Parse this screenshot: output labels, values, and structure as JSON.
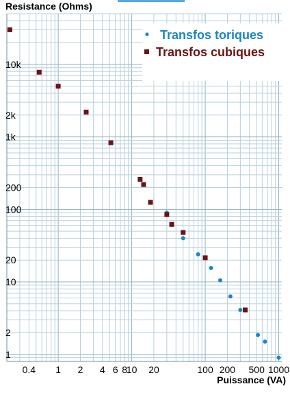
{
  "chart_data": {
    "type": "scatter",
    "title": "",
    "ylabel": "Resistance (Ohms)",
    "xlabel": "Puissance (VA)",
    "x_scale": "log",
    "y_scale": "log",
    "xlim": [
      0.2,
      1100
    ],
    "ylim": [
      0.8,
      50000
    ],
    "grid": true,
    "legend_position": "top-right",
    "x_tick_labels": [
      {
        "value": 0.4,
        "label": "0.4"
      },
      {
        "value": 1,
        "label": "1"
      },
      {
        "value": 2,
        "label": "2"
      },
      {
        "value": 4,
        "label": "4"
      },
      {
        "value": 6,
        "label": "6"
      },
      {
        "value": 8,
        "label": "8"
      },
      {
        "value": 10,
        "label": "10"
      },
      {
        "value": 20,
        "label": "20"
      },
      {
        "value": 100,
        "label": "100"
      },
      {
        "value": 200,
        "label": "200"
      },
      {
        "value": 500,
        "label": "500"
      },
      {
        "value": 1000,
        "label": "1000"
      }
    ],
    "y_tick_labels": [
      {
        "value": 1,
        "label": "1"
      },
      {
        "value": 2,
        "label": "2"
      },
      {
        "value": 10,
        "label": "10"
      },
      {
        "value": 20,
        "label": "20"
      },
      {
        "value": 100,
        "label": "100"
      },
      {
        "value": 200,
        "label": "200"
      },
      {
        "value": 1000,
        "label": "1k"
      },
      {
        "value": 2000,
        "label": "2k"
      },
      {
        "value": 10000,
        "label": "10k"
      }
    ],
    "series": [
      {
        "name": "Transfos toriques",
        "color": "#1a86c8",
        "marker": "circle",
        "points": [
          {
            "x": 30,
            "y": 90
          },
          {
            "x": 50,
            "y": 40
          },
          {
            "x": 80,
            "y": 24
          },
          {
            "x": 120,
            "y": 15.5
          },
          {
            "x": 160,
            "y": 10.5
          },
          {
            "x": 220,
            "y": 6.3
          },
          {
            "x": 300,
            "y": 4.1
          },
          {
            "x": 520,
            "y": 1.85
          },
          {
            "x": 650,
            "y": 1.5
          },
          {
            "x": 1000,
            "y": 0.9
          }
        ]
      },
      {
        "name": "Transfos cubiques",
        "color": "#6b1414",
        "marker": "square",
        "points": [
          {
            "x": 0.22,
            "y": 30000
          },
          {
            "x": 0.55,
            "y": 7800
          },
          {
            "x": 1,
            "y": 5000
          },
          {
            "x": 2.4,
            "y": 2200
          },
          {
            "x": 5.2,
            "y": 830
          },
          {
            "x": 13,
            "y": 260
          },
          {
            "x": 14.5,
            "y": 220
          },
          {
            "x": 18,
            "y": 125
          },
          {
            "x": 30,
            "y": 85
          },
          {
            "x": 35,
            "y": 62
          },
          {
            "x": 50,
            "y": 48
          },
          {
            "x": 100,
            "y": 21.5
          },
          {
            "x": 350,
            "y": 4.1
          }
        ]
      }
    ]
  }
}
